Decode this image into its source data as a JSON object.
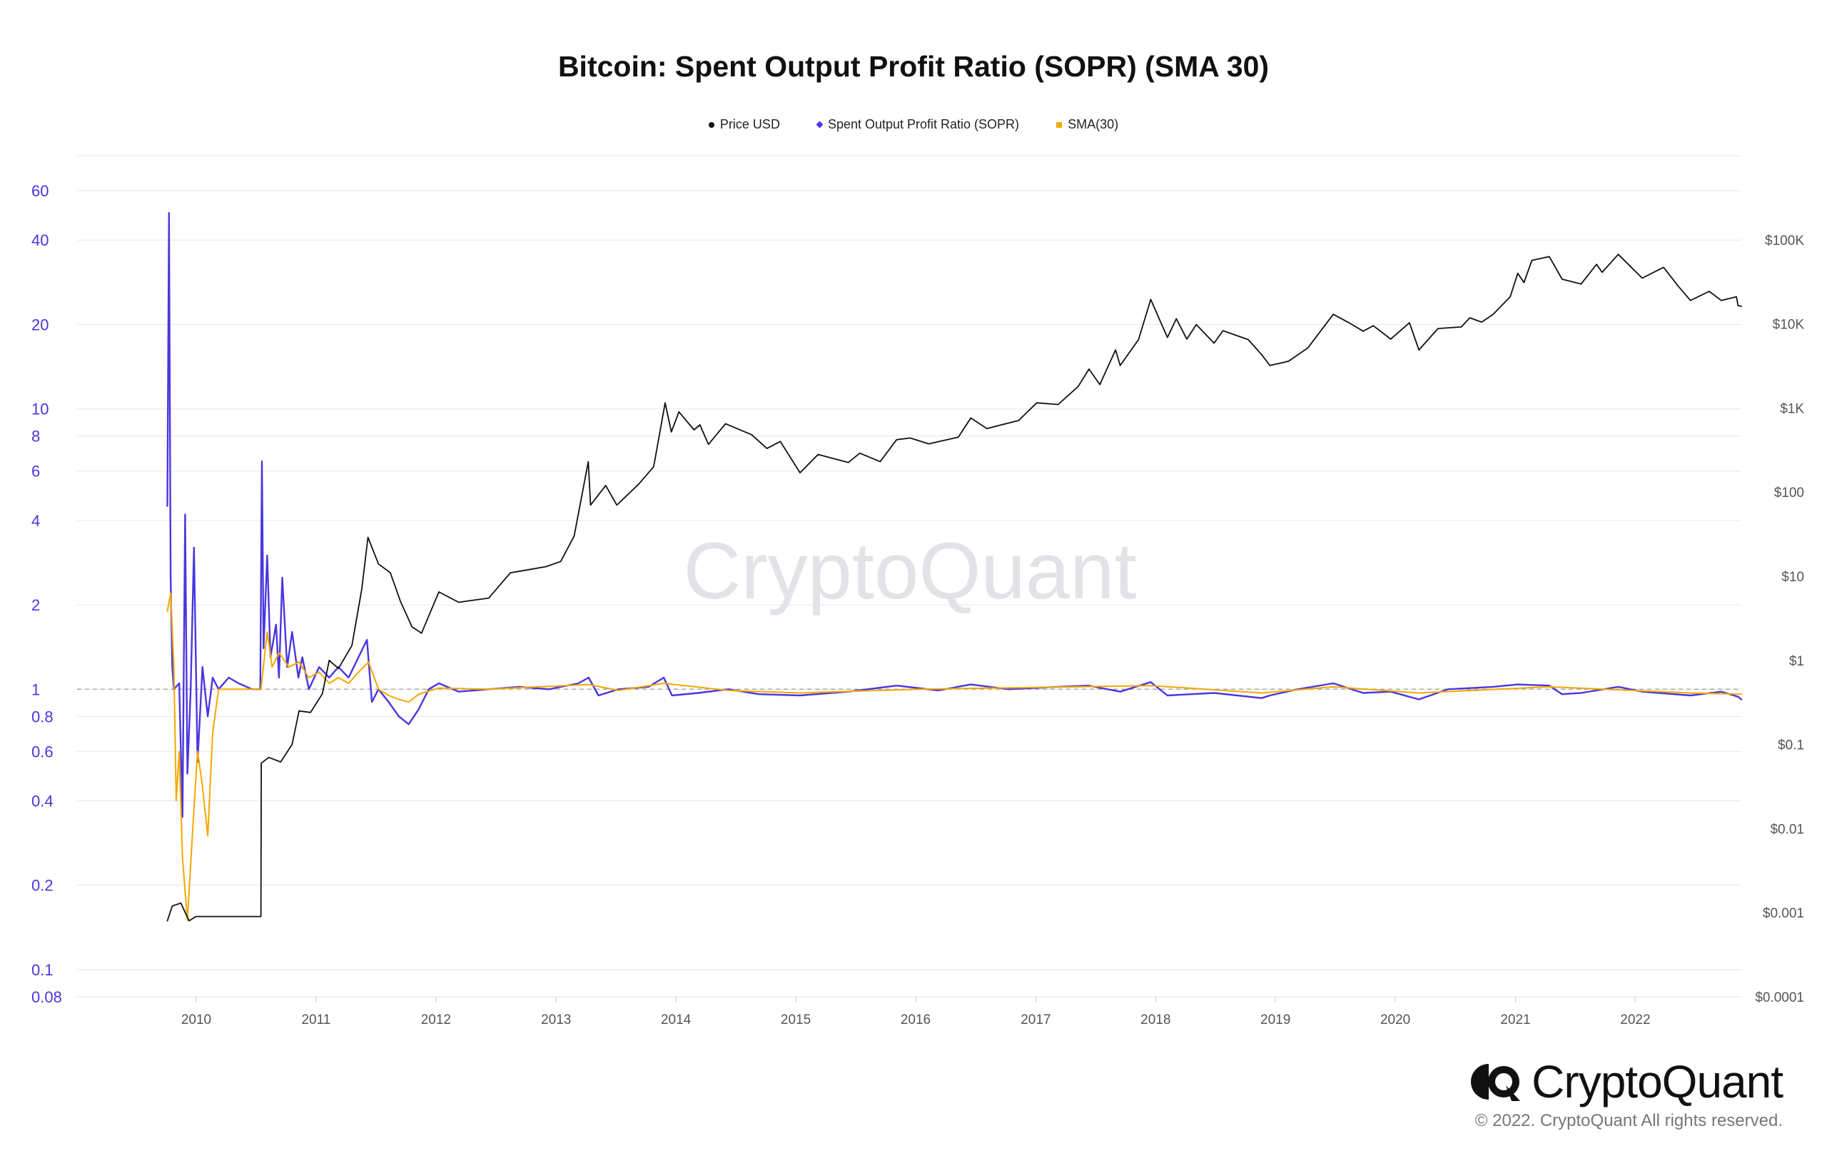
{
  "chart_data": {
    "type": "line",
    "title": "Bitcoin: Spent Output Profit Ratio (SOPR) (SMA 30)",
    "legend": {
      "placement": "top-center",
      "entries": [
        {
          "name": "Price USD",
          "color": "#111111",
          "marker": "circle"
        },
        {
          "name": "Spent Output Profit Ratio (SOPR)",
          "color": "#4a36e0",
          "marker": "diamond"
        },
        {
          "name": "SMA(30)",
          "color": "#f5a800",
          "marker": "square"
        }
      ]
    },
    "x_axis": {
      "type": "time",
      "range": [
        "2009-01-03",
        "2022-11-20"
      ],
      "tick_labels": [
        "2010",
        "2011",
        "2012",
        "2013",
        "2014",
        "2015",
        "2016",
        "2017",
        "2018",
        "2019",
        "2020",
        "2021",
        "2022"
      ]
    },
    "y_left": {
      "scale": "log",
      "range": [
        0.08,
        80
      ],
      "tick_labels": [
        "60",
        "40",
        "20",
        "10",
        "8",
        "6",
        "4",
        "2",
        "1",
        "0.8",
        "0.6",
        "0.4",
        "0.2",
        "0.1",
        "0.08"
      ],
      "tick_values": [
        60,
        40,
        20,
        10,
        8,
        6,
        4,
        2,
        1,
        0.8,
        0.6,
        0.4,
        0.2,
        0.1,
        0.08
      ],
      "color": "#4a36e0"
    },
    "y_right": {
      "scale": "log",
      "range": [
        0.0001,
        1000000
      ],
      "tick_labels": [
        "$100K",
        "$10K",
        "$1K",
        "$100",
        "$10",
        "$1",
        "$0.1",
        "$0.01",
        "$0.001",
        "$0.0001"
      ],
      "tick_values": [
        100000,
        10000,
        1000,
        100,
        10,
        1,
        0.1,
        0.01,
        0.001,
        0.0001
      ],
      "color": "#555555"
    },
    "grid": true,
    "reference_line": {
      "axis": "left",
      "value": 1,
      "style": "dashed"
    },
    "watermark": "CryptoQuant",
    "series": [
      {
        "name": "Price USD",
        "axis": "right",
        "color": "#111111",
        "points": [
          [
            "2009-10-05",
            0.0008
          ],
          [
            "2009-10-20",
            0.0012
          ],
          [
            "2009-11-15",
            0.0013
          ],
          [
            "2009-12-10",
            0.0008
          ],
          [
            "2009-12-31",
            0.0009
          ],
          [
            "2010-07-17",
            0.0009
          ],
          [
            "2010-07-18",
            0.06
          ],
          [
            "2010-08-10",
            0.07
          ],
          [
            "2010-09-15",
            0.062
          ],
          [
            "2010-10-20",
            0.1
          ],
          [
            "2010-11-10",
            0.25
          ],
          [
            "2010-12-15",
            0.24
          ],
          [
            "2011-01-20",
            0.4
          ],
          [
            "2011-02-10",
            1.0
          ],
          [
            "2011-03-10",
            0.8
          ],
          [
            "2011-04-20",
            1.5
          ],
          [
            "2011-05-20",
            7.0
          ],
          [
            "2011-06-08",
            29.0
          ],
          [
            "2011-07-10",
            14.0
          ],
          [
            "2011-08-15",
            11.0
          ],
          [
            "2011-09-15",
            5.0
          ],
          [
            "2011-10-20",
            2.5
          ],
          [
            "2011-11-18",
            2.1
          ],
          [
            "2012-01-10",
            6.5
          ],
          [
            "2012-03-10",
            4.9
          ],
          [
            "2012-06-10",
            5.5
          ],
          [
            "2012-08-15",
            11.0
          ],
          [
            "2012-09-15",
            11.5
          ],
          [
            "2012-12-01",
            13.0
          ],
          [
            "2013-01-15",
            15.0
          ],
          [
            "2013-02-25",
            30.0
          ],
          [
            "2013-04-09",
            230.0
          ],
          [
            "2013-04-16",
            70.0
          ],
          [
            "2013-06-01",
            120.0
          ],
          [
            "2013-07-05",
            70.0
          ],
          [
            "2013-09-10",
            125.0
          ],
          [
            "2013-10-25",
            200.0
          ],
          [
            "2013-11-29",
            1150.0
          ],
          [
            "2013-12-18",
            520.0
          ],
          [
            "2014-01-10",
            900.0
          ],
          [
            "2014-02-25",
            550.0
          ],
          [
            "2014-03-15",
            630.0
          ],
          [
            "2014-04-10",
            370.0
          ],
          [
            "2014-06-01",
            650.0
          ],
          [
            "2014-08-20",
            480.0
          ],
          [
            "2014-10-05",
            330.0
          ],
          [
            "2014-11-15",
            400.0
          ],
          [
            "2015-01-14",
            170.0
          ],
          [
            "2015-03-10",
            280.0
          ],
          [
            "2015-06-10",
            225.0
          ],
          [
            "2015-07-15",
            290.0
          ],
          [
            "2015-09-15",
            230.0
          ],
          [
            "2015-11-04",
            420.0
          ],
          [
            "2015-12-15",
            440.0
          ],
          [
            "2016-02-10",
            375.0
          ],
          [
            "2016-05-10",
            450.0
          ],
          [
            "2016-06-17",
            760.0
          ],
          [
            "2016-08-05",
            570.0
          ],
          [
            "2016-11-10",
            710.0
          ],
          [
            "2017-01-04",
            1150.0
          ],
          [
            "2017-03-10",
            1100.0
          ],
          [
            "2017-05-10",
            1800.0
          ],
          [
            "2017-06-12",
            2900.0
          ],
          [
            "2017-07-15",
            1900.0
          ],
          [
            "2017-09-01",
            4900.0
          ],
          [
            "2017-09-15",
            3200.0
          ],
          [
            "2017-11-10",
            6500.0
          ],
          [
            "2017-12-17",
            19500.0
          ],
          [
            "2018-02-06",
            6900.0
          ],
          [
            "2018-03-05",
            11500.0
          ],
          [
            "2018-04-06",
            6600.0
          ],
          [
            "2018-05-05",
            9800.0
          ],
          [
            "2018-06-28",
            5900.0
          ],
          [
            "2018-07-25",
            8300.0
          ],
          [
            "2018-10-10",
            6500.0
          ],
          [
            "2018-11-20",
            4300.0
          ],
          [
            "2018-12-15",
            3200.0
          ],
          [
            "2019-02-10",
            3600.0
          ],
          [
            "2019-04-10",
            5200.0
          ],
          [
            "2019-06-26",
            13000.0
          ],
          [
            "2019-08-15",
            10200.0
          ],
          [
            "2019-09-25",
            8200.0
          ],
          [
            "2019-10-26",
            9500.0
          ],
          [
            "2019-12-18",
            6600.0
          ],
          [
            "2020-02-13",
            10300.0
          ],
          [
            "2020-03-13",
            4900.0
          ],
          [
            "2020-05-10",
            8800.0
          ],
          [
            "2020-07-20",
            9200.0
          ],
          [
            "2020-08-15",
            11800.0
          ],
          [
            "2020-09-20",
            10500.0
          ],
          [
            "2020-10-25",
            13000.0
          ],
          [
            "2020-12-16",
            21000.0
          ],
          [
            "2021-01-08",
            40000.0
          ],
          [
            "2021-01-27",
            31000.0
          ],
          [
            "2021-02-20",
            57000.0
          ],
          [
            "2021-04-14",
            63000.0
          ],
          [
            "2021-05-23",
            34000.0
          ],
          [
            "2021-07-20",
            29800.0
          ],
          [
            "2021-09-05",
            51000.0
          ],
          [
            "2021-09-22",
            41000.0
          ],
          [
            "2021-11-10",
            67000.0
          ],
          [
            "2022-01-22",
            35000.0
          ],
          [
            "2022-03-28",
            47000.0
          ],
          [
            "2022-05-12",
            28000.0
          ],
          [
            "2022-06-18",
            19000.0
          ],
          [
            "2022-08-14",
            24400.0
          ],
          [
            "2022-09-20",
            19000.0
          ],
          [
            "2022-11-05",
            21000.0
          ],
          [
            "2022-11-10",
            16500.0
          ],
          [
            "2022-11-20",
            16200.0
          ]
        ]
      },
      {
        "name": "Spent Output Profit Ratio (SOPR)",
        "axis": "left",
        "color": "#4a36e0",
        "points": [
          [
            "2009-10-05",
            4.5
          ],
          [
            "2009-10-10",
            50.0
          ],
          [
            "2009-10-15",
            2.5
          ],
          [
            "2009-10-20",
            1.2
          ],
          [
            "2009-10-25",
            1.0
          ],
          [
            "2009-11-10",
            1.05
          ],
          [
            "2009-11-20",
            0.35
          ],
          [
            "2009-11-28",
            4.2
          ],
          [
            "2009-12-05",
            0.5
          ],
          [
            "2009-12-15",
            1.0
          ],
          [
            "2009-12-25",
            3.2
          ],
          [
            "2010-01-05",
            0.55
          ],
          [
            "2010-01-20",
            1.2
          ],
          [
            "2010-02-05",
            0.8
          ],
          [
            "2010-02-20",
            1.1
          ],
          [
            "2010-03-10",
            1.0
          ],
          [
            "2010-04-10",
            1.1
          ],
          [
            "2010-05-10",
            1.05
          ],
          [
            "2010-06-20",
            1.0
          ],
          [
            "2010-07-15",
            1.0
          ],
          [
            "2010-07-20",
            6.5
          ],
          [
            "2010-07-25",
            1.4
          ],
          [
            "2010-08-05",
            3.0
          ],
          [
            "2010-08-15",
            1.3
          ],
          [
            "2010-09-01",
            1.7
          ],
          [
            "2010-09-10",
            1.1
          ],
          [
            "2010-09-20",
            2.5
          ],
          [
            "2010-10-05",
            1.2
          ],
          [
            "2010-10-20",
            1.6
          ],
          [
            "2010-11-08",
            1.1
          ],
          [
            "2010-11-20",
            1.3
          ],
          [
            "2010-12-10",
            1.0
          ],
          [
            "2011-01-10",
            1.2
          ],
          [
            "2011-02-10",
            1.1
          ],
          [
            "2011-03-10",
            1.2
          ],
          [
            "2011-04-10",
            1.1
          ],
          [
            "2011-05-10",
            1.3
          ],
          [
            "2011-06-05",
            1.5
          ],
          [
            "2011-06-20",
            0.9
          ],
          [
            "2011-07-10",
            1.0
          ],
          [
            "2011-08-10",
            0.9
          ],
          [
            "2011-09-10",
            0.8
          ],
          [
            "2011-10-10",
            0.75
          ],
          [
            "2011-11-10",
            0.85
          ],
          [
            "2011-12-10",
            1.0
          ],
          [
            "2012-01-10",
            1.05
          ],
          [
            "2012-03-10",
            0.98
          ],
          [
            "2012-06-10",
            1.0
          ],
          [
            "2012-09-10",
            1.02
          ],
          [
            "2012-12-10",
            1.0
          ],
          [
            "2013-03-10",
            1.05
          ],
          [
            "2013-04-10",
            1.1
          ],
          [
            "2013-05-10",
            0.95
          ],
          [
            "2013-07-10",
            1.0
          ],
          [
            "2013-10-10",
            1.02
          ],
          [
            "2013-11-25",
            1.1
          ],
          [
            "2013-12-20",
            0.95
          ],
          [
            "2014-03-10",
            0.97
          ],
          [
            "2014-06-10",
            1.0
          ],
          [
            "2014-09-10",
            0.96
          ],
          [
            "2015-01-14",
            0.95
          ],
          [
            "2015-06-10",
            0.98
          ],
          [
            "2015-11-05",
            1.03
          ],
          [
            "2016-03-10",
            0.99
          ],
          [
            "2016-06-17",
            1.04
          ],
          [
            "2016-10-10",
            1.0
          ],
          [
            "2017-03-10",
            1.02
          ],
          [
            "2017-06-10",
            1.03
          ],
          [
            "2017-09-15",
            0.98
          ],
          [
            "2017-12-17",
            1.06
          ],
          [
            "2018-02-06",
            0.95
          ],
          [
            "2018-06-28",
            0.97
          ],
          [
            "2018-11-20",
            0.93
          ],
          [
            "2018-12-15",
            0.95
          ],
          [
            "2019-03-10",
            1.0
          ],
          [
            "2019-06-26",
            1.05
          ],
          [
            "2019-09-25",
            0.97
          ],
          [
            "2019-12-18",
            0.98
          ],
          [
            "2020-03-13",
            0.92
          ],
          [
            "2020-06-10",
            1.0
          ],
          [
            "2020-10-25",
            1.02
          ],
          [
            "2021-01-08",
            1.04
          ],
          [
            "2021-04-14",
            1.03
          ],
          [
            "2021-05-23",
            0.96
          ],
          [
            "2021-07-20",
            0.97
          ],
          [
            "2021-11-10",
            1.02
          ],
          [
            "2022-01-22",
            0.98
          ],
          [
            "2022-06-18",
            0.95
          ],
          [
            "2022-09-20",
            0.98
          ],
          [
            "2022-11-10",
            0.94
          ],
          [
            "2022-11-20",
            0.92
          ]
        ]
      },
      {
        "name": "SMA(30)",
        "axis": "left",
        "color": "#f5a800",
        "points": [
          [
            "2009-10-05",
            1.9
          ],
          [
            "2009-10-15",
            2.2
          ],
          [
            "2009-10-25",
            1.2
          ],
          [
            "2009-11-01",
            0.4
          ],
          [
            "2009-11-10",
            0.6
          ],
          [
            "2009-11-20",
            0.25
          ],
          [
            "2009-12-05",
            0.15
          ],
          [
            "2009-12-20",
            0.3
          ],
          [
            "2010-01-05",
            0.6
          ],
          [
            "2010-01-20",
            0.45
          ],
          [
            "2010-02-05",
            0.3
          ],
          [
            "2010-02-20",
            0.7
          ],
          [
            "2010-03-10",
            1.0
          ],
          [
            "2010-05-10",
            1.0
          ],
          [
            "2010-07-17",
            1.0
          ],
          [
            "2010-08-05",
            1.6
          ],
          [
            "2010-08-20",
            1.2
          ],
          [
            "2010-09-10",
            1.35
          ],
          [
            "2010-10-10",
            1.2
          ],
          [
            "2010-11-10",
            1.25
          ],
          [
            "2010-12-10",
            1.1
          ],
          [
            "2011-01-10",
            1.15
          ],
          [
            "2011-02-10",
            1.05
          ],
          [
            "2011-03-10",
            1.1
          ],
          [
            "2011-04-10",
            1.05
          ],
          [
            "2011-05-10",
            1.15
          ],
          [
            "2011-06-10",
            1.25
          ],
          [
            "2011-07-10",
            1.0
          ],
          [
            "2011-08-10",
            0.95
          ],
          [
            "2011-09-10",
            0.92
          ],
          [
            "2011-10-10",
            0.9
          ],
          [
            "2011-11-10",
            0.96
          ],
          [
            "2012-01-10",
            1.01
          ],
          [
            "2012-06-10",
            1.0
          ],
          [
            "2013-04-10",
            1.04
          ],
          [
            "2013-07-10",
            0.99
          ],
          [
            "2013-11-25",
            1.05
          ],
          [
            "2014-06-10",
            0.99
          ],
          [
            "2015-01-14",
            0.97
          ],
          [
            "2016-01-10",
            1.0
          ],
          [
            "2017-12-17",
            1.03
          ],
          [
            "2018-11-20",
            0.97
          ],
          [
            "2019-06-26",
            1.02
          ],
          [
            "2020-03-13",
            0.97
          ],
          [
            "2021-04-14",
            1.02
          ],
          [
            "2022-06-18",
            0.97
          ],
          [
            "2022-11-20",
            0.96
          ]
        ]
      }
    ]
  },
  "footer": {
    "brand": "CryptoQuant",
    "copyright": "© 2022. CryptoQuant All rights reserved."
  }
}
